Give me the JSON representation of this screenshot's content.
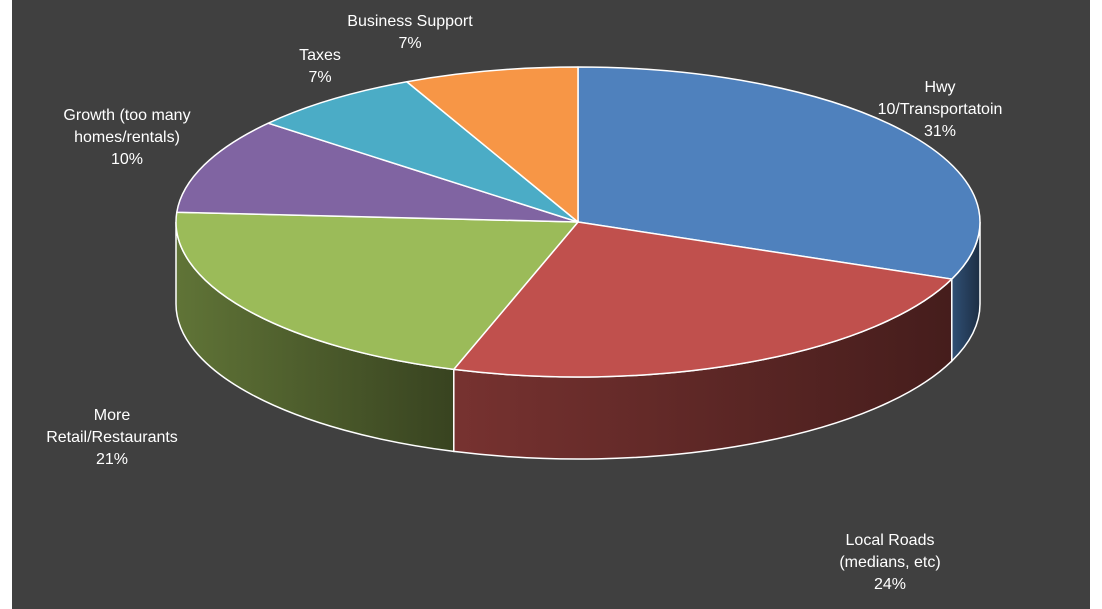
{
  "chart_data": {
    "type": "pie",
    "style": "3d-exploded-none",
    "background": "#404040",
    "slices": [
      {
        "label_lines": [
          "Hwy",
          "10/Transportatoin"
        ],
        "value": 31,
        "value_label": "31%",
        "color": "#4F81BD"
      },
      {
        "label_lines": [
          "Local Roads",
          "(medians, etc)"
        ],
        "value": 24,
        "value_label": "24%",
        "color": "#C0504D"
      },
      {
        "label_lines": [
          "More",
          "Retail/Restaurants"
        ],
        "value": 21,
        "value_label": "21%",
        "color": "#9BBB59"
      },
      {
        "label_lines": [
          "Growth (too many",
          "homes/rentals)"
        ],
        "value": 10,
        "value_label": "10%",
        "color": "#8064A2"
      },
      {
        "label_lines": [
          "Taxes"
        ],
        "value": 7,
        "value_label": "7%",
        "color": "#4BACC6"
      },
      {
        "label_lines": [
          "Business Support"
        ],
        "value": 7,
        "value_label": "7%",
        "color": "#F79646"
      }
    ]
  }
}
